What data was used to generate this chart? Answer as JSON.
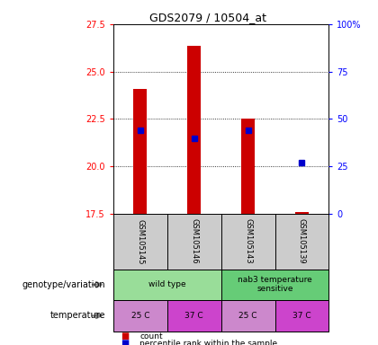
{
  "title": "GDS2079 / 10504_at",
  "samples": [
    "GSM105145",
    "GSM105146",
    "GSM105143",
    "GSM105139"
  ],
  "counts": [
    24.1,
    26.35,
    22.5,
    17.62
  ],
  "percentiles": [
    44,
    40,
    44,
    27
  ],
  "ymin": 17.5,
  "ymax": 27.5,
  "yticks": [
    17.5,
    20.0,
    22.5,
    25.0,
    27.5
  ],
  "pct_yticks": [
    0,
    25,
    50,
    75,
    100
  ],
  "bar_color": "#cc0000",
  "pct_color": "#0000cc",
  "bar_width": 0.25,
  "temperatures": [
    "25 C",
    "37 C",
    "25 C",
    "37 C"
  ],
  "temp_colors": [
    "#cc88cc",
    "#cc44cc",
    "#cc88cc",
    "#cc44cc"
  ],
  "sample_bg": "#cccccc",
  "geno_colors": [
    "#99dd99",
    "#99dd99"
  ],
  "legend_count_color": "#cc0000",
  "legend_pct_color": "#0000cc",
  "grid_color": "#888888",
  "geno_labels": [
    "wild type",
    "nab3 temperature\nsensitive"
  ]
}
